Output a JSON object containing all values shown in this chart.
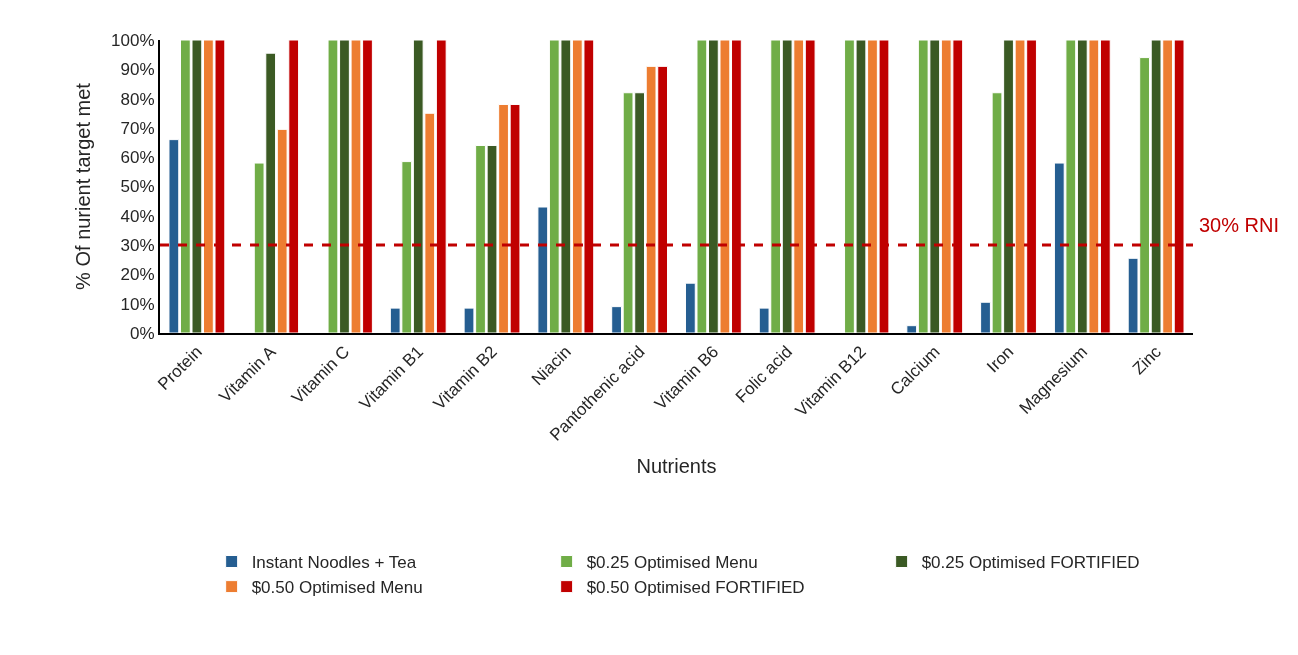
{
  "chart_data": {
    "type": "bar",
    "xlabel": "Nutrients",
    "ylabel": "% Of nurient target met",
    "categories": [
      "Protein",
      "Vitamin A",
      "Vitamin C",
      "Vitamin B1",
      "Vitamin B2",
      "Niacin",
      "Pantothenic acid",
      "Vitamin B6",
      "Folic acid",
      "Vitamin B12",
      "Calcium",
      "Iron",
      "Magnesium",
      "Zinc"
    ],
    "series": [
      {
        "name": "Instant Noodles + Tea",
        "color": "#255e91",
        "values": [
          66,
          null,
          null,
          8.5,
          8.5,
          43,
          9,
          17,
          8.5,
          null,
          2.5,
          10.5,
          58,
          25.5
        ]
      },
      {
        "name": "$0.25 Optimised Menu",
        "color": "#70ad47",
        "values": [
          100,
          58,
          100,
          58.5,
          64,
          100,
          82,
          100,
          100,
          100,
          100,
          82,
          100,
          94
        ]
      },
      {
        "name": "$0.25 Optimised FORTIFIED",
        "color": "#3b5a24",
        "values": [
          100,
          95.5,
          100,
          100,
          64,
          100,
          82,
          100,
          100,
          100,
          100,
          100,
          100,
          100
        ]
      },
      {
        "name": "$0.50 Optimised Menu",
        "color": "#ed7d31",
        "values": [
          100,
          69.5,
          100,
          75,
          78,
          100,
          91,
          100,
          100,
          100,
          100,
          100,
          100,
          100
        ]
      },
      {
        "name": "$0.50 Optimised FORTIFIED",
        "color": "#c00000",
        "values": [
          100,
          100,
          100,
          100,
          78,
          100,
          91,
          100,
          100,
          100,
          100,
          100,
          100,
          100
        ]
      }
    ],
    "ylim": [
      0,
      100
    ],
    "yticks": [
      {
        "value": 0,
        "label": "0%"
      },
      {
        "value": 10,
        "label": "10%"
      },
      {
        "value": 20,
        "label": "20%"
      },
      {
        "value": 30,
        "label": "30%"
      },
      {
        "value": 40,
        "label": "40%"
      },
      {
        "value": 50,
        "label": "50%"
      },
      {
        "value": 60,
        "label": "60%"
      },
      {
        "value": 70,
        "label": "70%"
      },
      {
        "value": 80,
        "label": "80%"
      },
      {
        "value": 90,
        "label": "90%"
      },
      {
        "value": 100,
        "label": "100%"
      }
    ],
    "ref_lines": [
      {
        "axis": "y",
        "value": 30,
        "label": "30% RNI",
        "color": "#c00000",
        "line_style": "dashed"
      }
    ],
    "legend": "bottom"
  }
}
